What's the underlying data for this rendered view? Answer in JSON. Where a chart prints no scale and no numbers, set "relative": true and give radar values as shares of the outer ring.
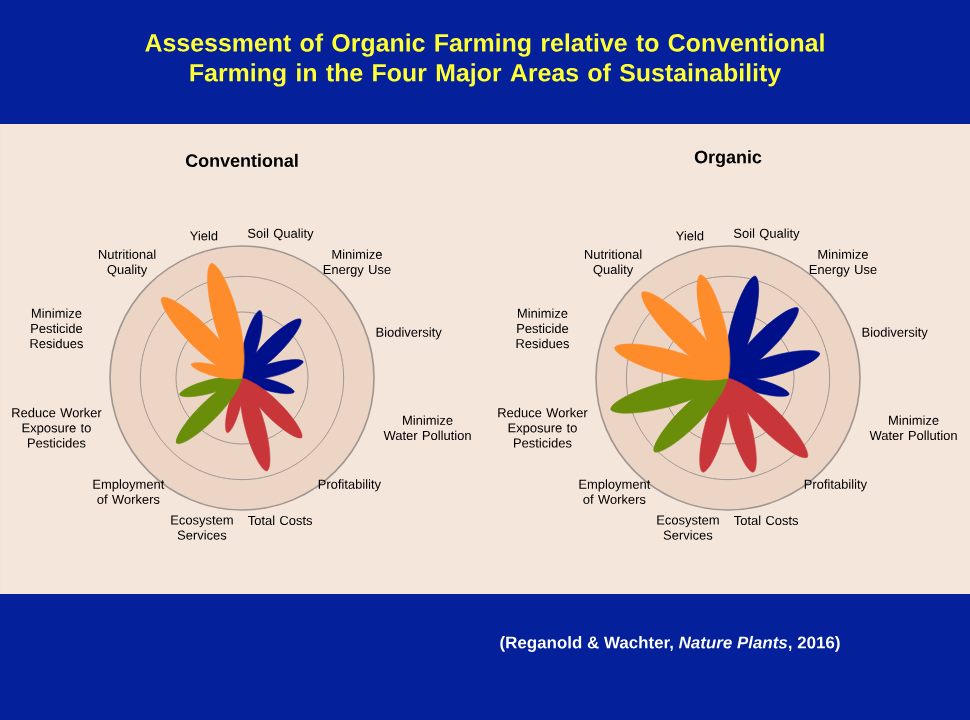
{
  "chart_data": [
    {
      "type": "other",
      "title": "Assessment of Organic Farming relative to Conventional Farming in the Four Major Areas of Sustainability",
      "annotations": [
        "(Reganold & Wachter, *Nature Plants*, 2016)"
      ]
    },
    {
      "type": "radar",
      "title": "Conventional",
      "relative": true,
      "grid": true,
      "categories": [
        "Soil Quality",
        "Minimize Energy Use",
        "Biodiversity",
        "Minimize Water Pollution",
        "Profitability",
        "Total Costs",
        "Ecosystem Services",
        "Employment of Workers",
        "Reduce Worker Exposure to Pesticides",
        "Minimize Pesticide Residues",
        "Nutritional Quality",
        "Yield"
      ],
      "series": [
        {
          "color": "#000f8a",
          "values": [
            0.53,
            0.63,
            0.48,
            0.41,
            null,
            null,
            null,
            null,
            null,
            null,
            null,
            null
          ]
        },
        {
          "color": "#c8363a",
          "values": [
            null,
            null,
            null,
            null,
            0.64,
            0.73,
            0.43,
            null,
            null,
            null,
            null,
            null
          ]
        },
        {
          "color": "#6b8e0a",
          "values": [
            null,
            null,
            null,
            null,
            null,
            null,
            null,
            0.7,
            0.49,
            null,
            null,
            null
          ]
        },
        {
          "color": "#ff8c2a",
          "values": [
            null,
            null,
            null,
            null,
            null,
            null,
            null,
            null,
            null,
            0.4,
            0.86,
            0.9
          ]
        }
      ]
    },
    {
      "type": "radar",
      "title": "Organic",
      "relative": true,
      "grid": true,
      "categories": [
        "Soil Quality",
        "Minimize Energy Use",
        "Biodiversity",
        "Minimize Water Pollution",
        "Profitability",
        "Total Costs",
        "Ecosystem Services",
        "Employment of Workers",
        "Reduce Worker Exposure to Pesticides",
        "Minimize Pesticide Residues",
        "Nutritional Quality",
        "Yield"
      ],
      "series": [
        {
          "color": "#000f8a",
          "values": [
            0.8,
            0.75,
            0.72,
            0.48,
            null,
            null,
            null,
            null,
            null,
            null,
            null,
            null
          ]
        },
        {
          "color": "#c8363a",
          "values": [
            null,
            null,
            null,
            null,
            0.85,
            0.74,
            0.74,
            null,
            null,
            null,
            null,
            null
          ]
        },
        {
          "color": "#6b8e0a",
          "values": [
            null,
            null,
            null,
            null,
            null,
            null,
            null,
            0.79,
            0.92,
            null,
            null,
            null
          ]
        },
        {
          "color": "#ff8c2a",
          "values": [
            null,
            null,
            null,
            null,
            null,
            null,
            null,
            null,
            null,
            0.89,
            0.92,
            0.81
          ]
        }
      ]
    }
  ]
}
